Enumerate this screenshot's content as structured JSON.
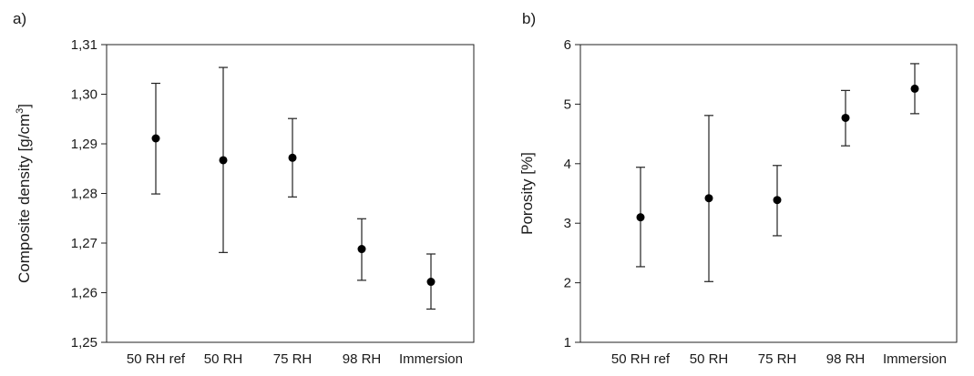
{
  "chart_data": [
    {
      "type": "scatter",
      "panel_label": "a)",
      "title": "",
      "xlabel": "",
      "ylabel": "Composite density [g/cm",
      "ylabel_superscript": "3",
      "ylabel_suffix": "]",
      "categories": [
        "50 RH ref",
        "50 RH",
        "75 RH",
        "98 RH",
        "Immersion"
      ],
      "ylim": [
        1.25,
        1.31
      ],
      "yticks": [
        1.25,
        1.26,
        1.27,
        1.28,
        1.29,
        1.3,
        1.31
      ],
      "ytick_labels": [
        "1,25",
        "1,26",
        "1,27",
        "1,28",
        "1,29",
        "1,30",
        "1,31"
      ],
      "grid": false,
      "series": [
        {
          "values": [
            1.2911,
            1.2867,
            1.2872,
            1.2688,
            1.2622
          ],
          "err_high": [
            1.3022,
            1.3054,
            1.2951,
            1.2749,
            1.2678
          ],
          "err_low": [
            1.2799,
            1.2681,
            1.2793,
            1.2625,
            1.2567
          ]
        }
      ]
    },
    {
      "type": "scatter",
      "panel_label": "b)",
      "title": "",
      "xlabel": "",
      "ylabel": "Porosity [%]",
      "categories": [
        "50 RH ref",
        "50 RH",
        "75 RH",
        "98 RH",
        "Immersion"
      ],
      "ylim": [
        1,
        6
      ],
      "yticks": [
        1,
        2,
        3,
        4,
        5,
        6
      ],
      "ytick_labels": [
        "1",
        "2",
        "3",
        "4",
        "5",
        "6"
      ],
      "grid": false,
      "series": [
        {
          "values": [
            3.1,
            3.42,
            3.39,
            4.77,
            5.26
          ],
          "err_high": [
            3.94,
            4.81,
            3.97,
            5.23,
            5.68
          ],
          "err_low": [
            2.27,
            2.02,
            2.79,
            4.3,
            4.84
          ]
        }
      ]
    }
  ]
}
